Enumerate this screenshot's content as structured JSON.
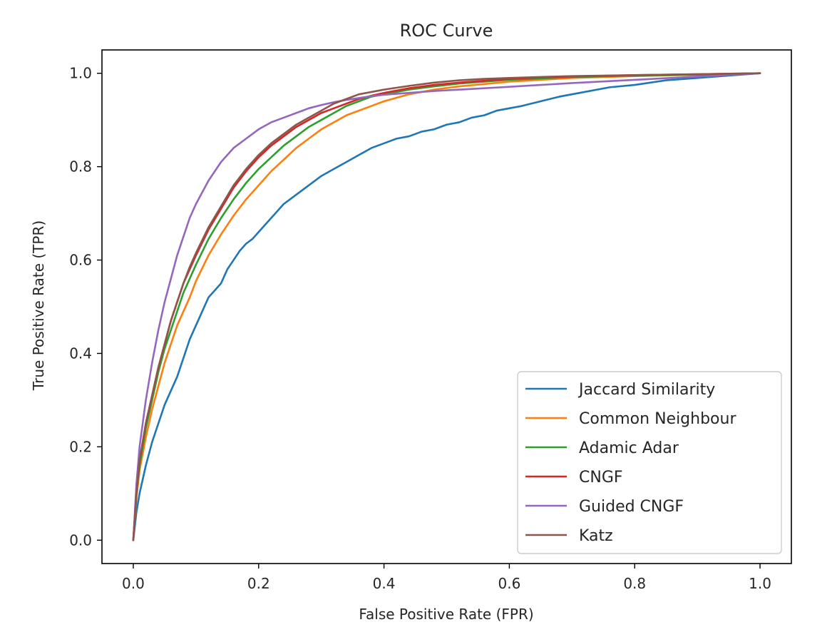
{
  "chart_data": {
    "type": "line",
    "title": "ROC Curve",
    "xlabel": "False Positive Rate (FPR)",
    "ylabel": "True Positive Rate (TPR)",
    "xlim": [
      -0.05,
      1.05
    ],
    "ylim": [
      -0.05,
      1.05
    ],
    "xticks": [
      0.0,
      0.2,
      0.4,
      0.6,
      0.8,
      1.0
    ],
    "xtick_labels": [
      "0.0",
      "0.2",
      "0.4",
      "0.6",
      "0.8",
      "1.0"
    ],
    "yticks": [
      0.0,
      0.2,
      0.4,
      0.6,
      0.8,
      1.0
    ],
    "ytick_labels": [
      "0.0",
      "0.2",
      "0.4",
      "0.6",
      "0.8",
      "1.0"
    ],
    "grid": false,
    "legend_position": "lower-right",
    "series": [
      {
        "name": "Jaccard Similarity",
        "color": "#1f77b4",
        "x": [
          0,
          0.005,
          0.01,
          0.02,
          0.03,
          0.04,
          0.05,
          0.06,
          0.07,
          0.08,
          0.09,
          0.1,
          0.11,
          0.12,
          0.13,
          0.14,
          0.15,
          0.16,
          0.17,
          0.18,
          0.19,
          0.2,
          0.22,
          0.24,
          0.26,
          0.28,
          0.3,
          0.32,
          0.34,
          0.36,
          0.38,
          0.4,
          0.42,
          0.44,
          0.46,
          0.48,
          0.5,
          0.52,
          0.54,
          0.56,
          0.58,
          0.6,
          0.62,
          0.65,
          0.68,
          0.72,
          0.76,
          0.8,
          0.85,
          0.9,
          0.95,
          1.0
        ],
        "y": [
          0,
          0.06,
          0.1,
          0.16,
          0.21,
          0.25,
          0.29,
          0.32,
          0.35,
          0.39,
          0.43,
          0.46,
          0.49,
          0.52,
          0.535,
          0.55,
          0.58,
          0.6,
          0.62,
          0.635,
          0.645,
          0.66,
          0.69,
          0.72,
          0.74,
          0.76,
          0.78,
          0.795,
          0.81,
          0.825,
          0.84,
          0.85,
          0.86,
          0.865,
          0.875,
          0.88,
          0.89,
          0.895,
          0.905,
          0.91,
          0.92,
          0.925,
          0.93,
          0.94,
          0.95,
          0.96,
          0.97,
          0.975,
          0.985,
          0.99,
          0.995,
          1.0
        ]
      },
      {
        "name": "Common Neighbour",
        "color": "#ff7f0e",
        "x": [
          0,
          0.005,
          0.01,
          0.02,
          0.03,
          0.04,
          0.05,
          0.06,
          0.07,
          0.08,
          0.09,
          0.1,
          0.12,
          0.14,
          0.16,
          0.18,
          0.2,
          0.22,
          0.24,
          0.26,
          0.28,
          0.3,
          0.32,
          0.34,
          0.36,
          0.38,
          0.4,
          0.44,
          0.48,
          0.52,
          0.56,
          0.6,
          0.65,
          0.7,
          0.8,
          0.9,
          1.0
        ],
        "y": [
          0,
          0.09,
          0.15,
          0.22,
          0.28,
          0.33,
          0.38,
          0.42,
          0.46,
          0.49,
          0.52,
          0.555,
          0.61,
          0.655,
          0.695,
          0.73,
          0.76,
          0.79,
          0.815,
          0.84,
          0.86,
          0.88,
          0.895,
          0.91,
          0.92,
          0.93,
          0.94,
          0.955,
          0.965,
          0.972,
          0.977,
          0.982,
          0.986,
          0.99,
          0.994,
          0.997,
          1.0
        ]
      },
      {
        "name": "Adamic Adar",
        "color": "#2ca02c",
        "x": [
          0,
          0.005,
          0.01,
          0.02,
          0.03,
          0.04,
          0.05,
          0.06,
          0.07,
          0.08,
          0.09,
          0.1,
          0.12,
          0.14,
          0.16,
          0.18,
          0.2,
          0.22,
          0.24,
          0.26,
          0.28,
          0.3,
          0.32,
          0.34,
          0.36,
          0.38,
          0.4,
          0.44,
          0.48,
          0.52,
          0.56,
          0.6,
          0.65,
          0.7,
          0.8,
          0.9,
          1.0
        ],
        "y": [
          0,
          0.1,
          0.16,
          0.24,
          0.3,
          0.36,
          0.41,
          0.45,
          0.49,
          0.53,
          0.56,
          0.59,
          0.645,
          0.69,
          0.73,
          0.765,
          0.795,
          0.82,
          0.845,
          0.865,
          0.885,
          0.9,
          0.915,
          0.93,
          0.94,
          0.95,
          0.955,
          0.965,
          0.972,
          0.978,
          0.982,
          0.986,
          0.989,
          0.992,
          0.995,
          0.997,
          1.0
        ]
      },
      {
        "name": "CNGF",
        "color": "#d62728",
        "x": [
          0,
          0.005,
          0.01,
          0.02,
          0.03,
          0.04,
          0.05,
          0.06,
          0.07,
          0.08,
          0.09,
          0.1,
          0.12,
          0.14,
          0.16,
          0.18,
          0.2,
          0.22,
          0.24,
          0.26,
          0.28,
          0.3,
          0.32,
          0.34,
          0.36,
          0.38,
          0.4,
          0.44,
          0.48,
          0.52,
          0.56,
          0.6,
          0.65,
          0.7,
          0.8,
          0.9,
          1.0
        ],
        "y": [
          0,
          0.1,
          0.17,
          0.25,
          0.31,
          0.37,
          0.42,
          0.47,
          0.51,
          0.55,
          0.58,
          0.61,
          0.665,
          0.71,
          0.755,
          0.79,
          0.82,
          0.845,
          0.865,
          0.885,
          0.9,
          0.915,
          0.925,
          0.935,
          0.945,
          0.952,
          0.958,
          0.968,
          0.975,
          0.98,
          0.984,
          0.988,
          0.991,
          0.993,
          0.996,
          0.998,
          1.0
        ]
      },
      {
        "name": "Guided CNGF",
        "color": "#9467bd",
        "x": [
          0,
          0.005,
          0.01,
          0.02,
          0.03,
          0.04,
          0.05,
          0.06,
          0.07,
          0.08,
          0.09,
          0.1,
          0.12,
          0.14,
          0.16,
          0.18,
          0.2,
          0.22,
          0.24,
          0.26,
          0.28,
          0.3,
          0.32,
          0.34,
          0.36,
          0.38,
          0.4,
          0.44,
          0.48,
          0.52,
          0.56,
          0.6,
          0.65,
          0.7,
          0.8,
          0.9,
          1.0
        ],
        "y": [
          0,
          0.12,
          0.2,
          0.3,
          0.38,
          0.45,
          0.51,
          0.56,
          0.61,
          0.65,
          0.69,
          0.72,
          0.77,
          0.81,
          0.84,
          0.86,
          0.88,
          0.895,
          0.905,
          0.915,
          0.925,
          0.932,
          0.938,
          0.943,
          0.947,
          0.951,
          0.954,
          0.958,
          0.962,
          0.965,
          0.968,
          0.971,
          0.975,
          0.979,
          0.986,
          0.993,
          1.0
        ]
      },
      {
        "name": "Katz",
        "color": "#8c564b",
        "x": [
          0,
          0.005,
          0.01,
          0.02,
          0.03,
          0.04,
          0.05,
          0.06,
          0.07,
          0.08,
          0.09,
          0.1,
          0.12,
          0.14,
          0.16,
          0.18,
          0.2,
          0.22,
          0.24,
          0.26,
          0.28,
          0.3,
          0.32,
          0.34,
          0.36,
          0.38,
          0.4,
          0.44,
          0.48,
          0.52,
          0.56,
          0.6,
          0.65,
          0.7,
          0.8,
          0.9,
          1.0
        ],
        "y": [
          0,
          0.1,
          0.17,
          0.25,
          0.31,
          0.37,
          0.42,
          0.47,
          0.51,
          0.55,
          0.585,
          0.615,
          0.67,
          0.715,
          0.76,
          0.795,
          0.825,
          0.85,
          0.87,
          0.89,
          0.905,
          0.92,
          0.935,
          0.945,
          0.955,
          0.96,
          0.965,
          0.973,
          0.98,
          0.985,
          0.988,
          0.99,
          0.992,
          0.994,
          0.996,
          0.998,
          1.0
        ]
      }
    ]
  }
}
